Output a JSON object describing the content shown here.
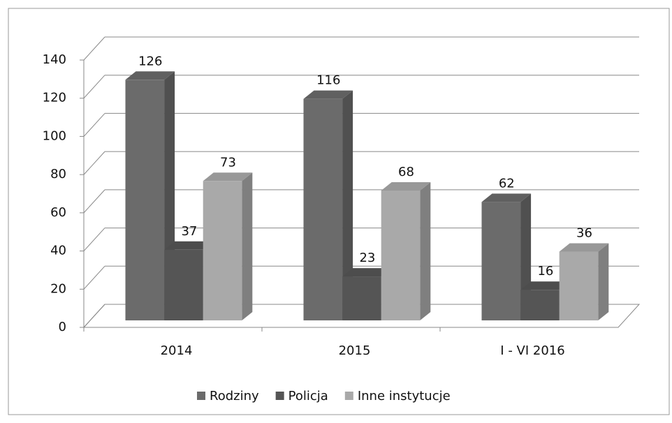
{
  "chart_data": {
    "type": "bar3d",
    "categories": [
      "2014",
      "2015",
      "I - VI 2016"
    ],
    "series": [
      {
        "name": "Rodziny",
        "color": "#6b6b6b",
        "values": [
          126,
          116,
          62
        ]
      },
      {
        "name": "Policja",
        "color": "#555555",
        "values": [
          37,
          23,
          16
        ]
      },
      {
        "name": "Inne instytucje",
        "color": "#a9a9a9",
        "values": [
          73,
          68,
          36
        ]
      }
    ],
    "ylim": [
      0,
      140
    ],
    "yticks": [
      0,
      20,
      40,
      60,
      80,
      100,
      120,
      140
    ],
    "grid": true,
    "legend": "bottom"
  }
}
